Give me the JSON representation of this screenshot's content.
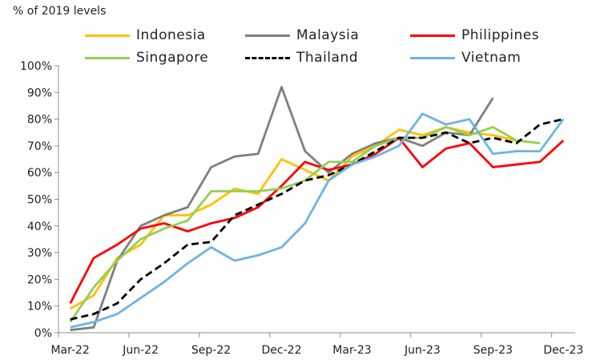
{
  "chart_data": {
    "type": "line",
    "title": "% of 2019 levels",
    "xlabel": "",
    "ylabel": "",
    "ylim": [
      0,
      100
    ],
    "yticks": [
      "0%",
      "10%",
      "20%",
      "30%",
      "40%",
      "50%",
      "60%",
      "70%",
      "80%",
      "90%",
      "100%"
    ],
    "xticks": [
      "Mar-22",
      "Jun-22",
      "Sep-22",
      "Dec-22",
      "Mar-23",
      "Jun-23",
      "Sep-23",
      "Dec-23"
    ],
    "x": [
      "Mar-22",
      "Apr-22",
      "May-22",
      "Jun-22",
      "Jul-22",
      "Aug-22",
      "Sep-22",
      "Oct-22",
      "Nov-22",
      "Dec-22",
      "Jan-23",
      "Feb-23",
      "Mar-23",
      "Apr-23",
      "May-23",
      "Jun-23",
      "Jul-23",
      "Aug-23",
      "Sep-23",
      "Oct-23",
      "Nov-23",
      "Dec-23"
    ],
    "grid": false,
    "legend_position": "top",
    "series": [
      {
        "name": "Indonesia",
        "color": "#FFC000",
        "dash": "solid",
        "values": [
          9,
          14,
          28,
          33,
          44,
          44,
          48,
          54,
          52,
          65,
          61,
          57,
          66,
          70,
          76,
          74,
          77,
          75,
          74,
          72,
          null,
          null
        ]
      },
      {
        "name": "Malaysia",
        "color": "#7F7F7F",
        "dash": "solid",
        "values": [
          1,
          2,
          27,
          40,
          44,
          47,
          62,
          66,
          67,
          92,
          68,
          60,
          67,
          71,
          73,
          70,
          75,
          74,
          88,
          null,
          null,
          null
        ]
      },
      {
        "name": "Philippines",
        "color": "#FF0000",
        "dash": "solid",
        "values": [
          11,
          28,
          33,
          39,
          41,
          38,
          41,
          43,
          47,
          55,
          64,
          61,
          63,
          67,
          73,
          62,
          69,
          71,
          62,
          63,
          64,
          72
        ]
      },
      {
        "name": "Singapore",
        "color": "#92D050",
        "dash": "solid",
        "values": [
          4,
          17,
          27,
          35,
          39,
          42,
          53,
          53,
          53,
          54,
          57,
          64,
          64,
          70,
          73,
          73,
          77,
          74,
          77,
          72,
          71,
          null
        ]
      },
      {
        "name": "Thailand",
        "color": "#000000",
        "dash": "dashed",
        "values": [
          5,
          7,
          11,
          20,
          26,
          33,
          34,
          44,
          48,
          52,
          57,
          59,
          63,
          68,
          73,
          73,
          75,
          71,
          73,
          71,
          78,
          80
        ]
      },
      {
        "name": "Vietnam",
        "color": "#6CB4E4",
        "dash": "solid",
        "values": [
          2,
          4,
          7,
          13,
          19,
          26,
          32,
          27,
          29,
          32,
          41,
          57,
          63,
          66,
          70,
          82,
          78,
          80,
          67,
          68,
          68,
          80
        ]
      }
    ]
  }
}
